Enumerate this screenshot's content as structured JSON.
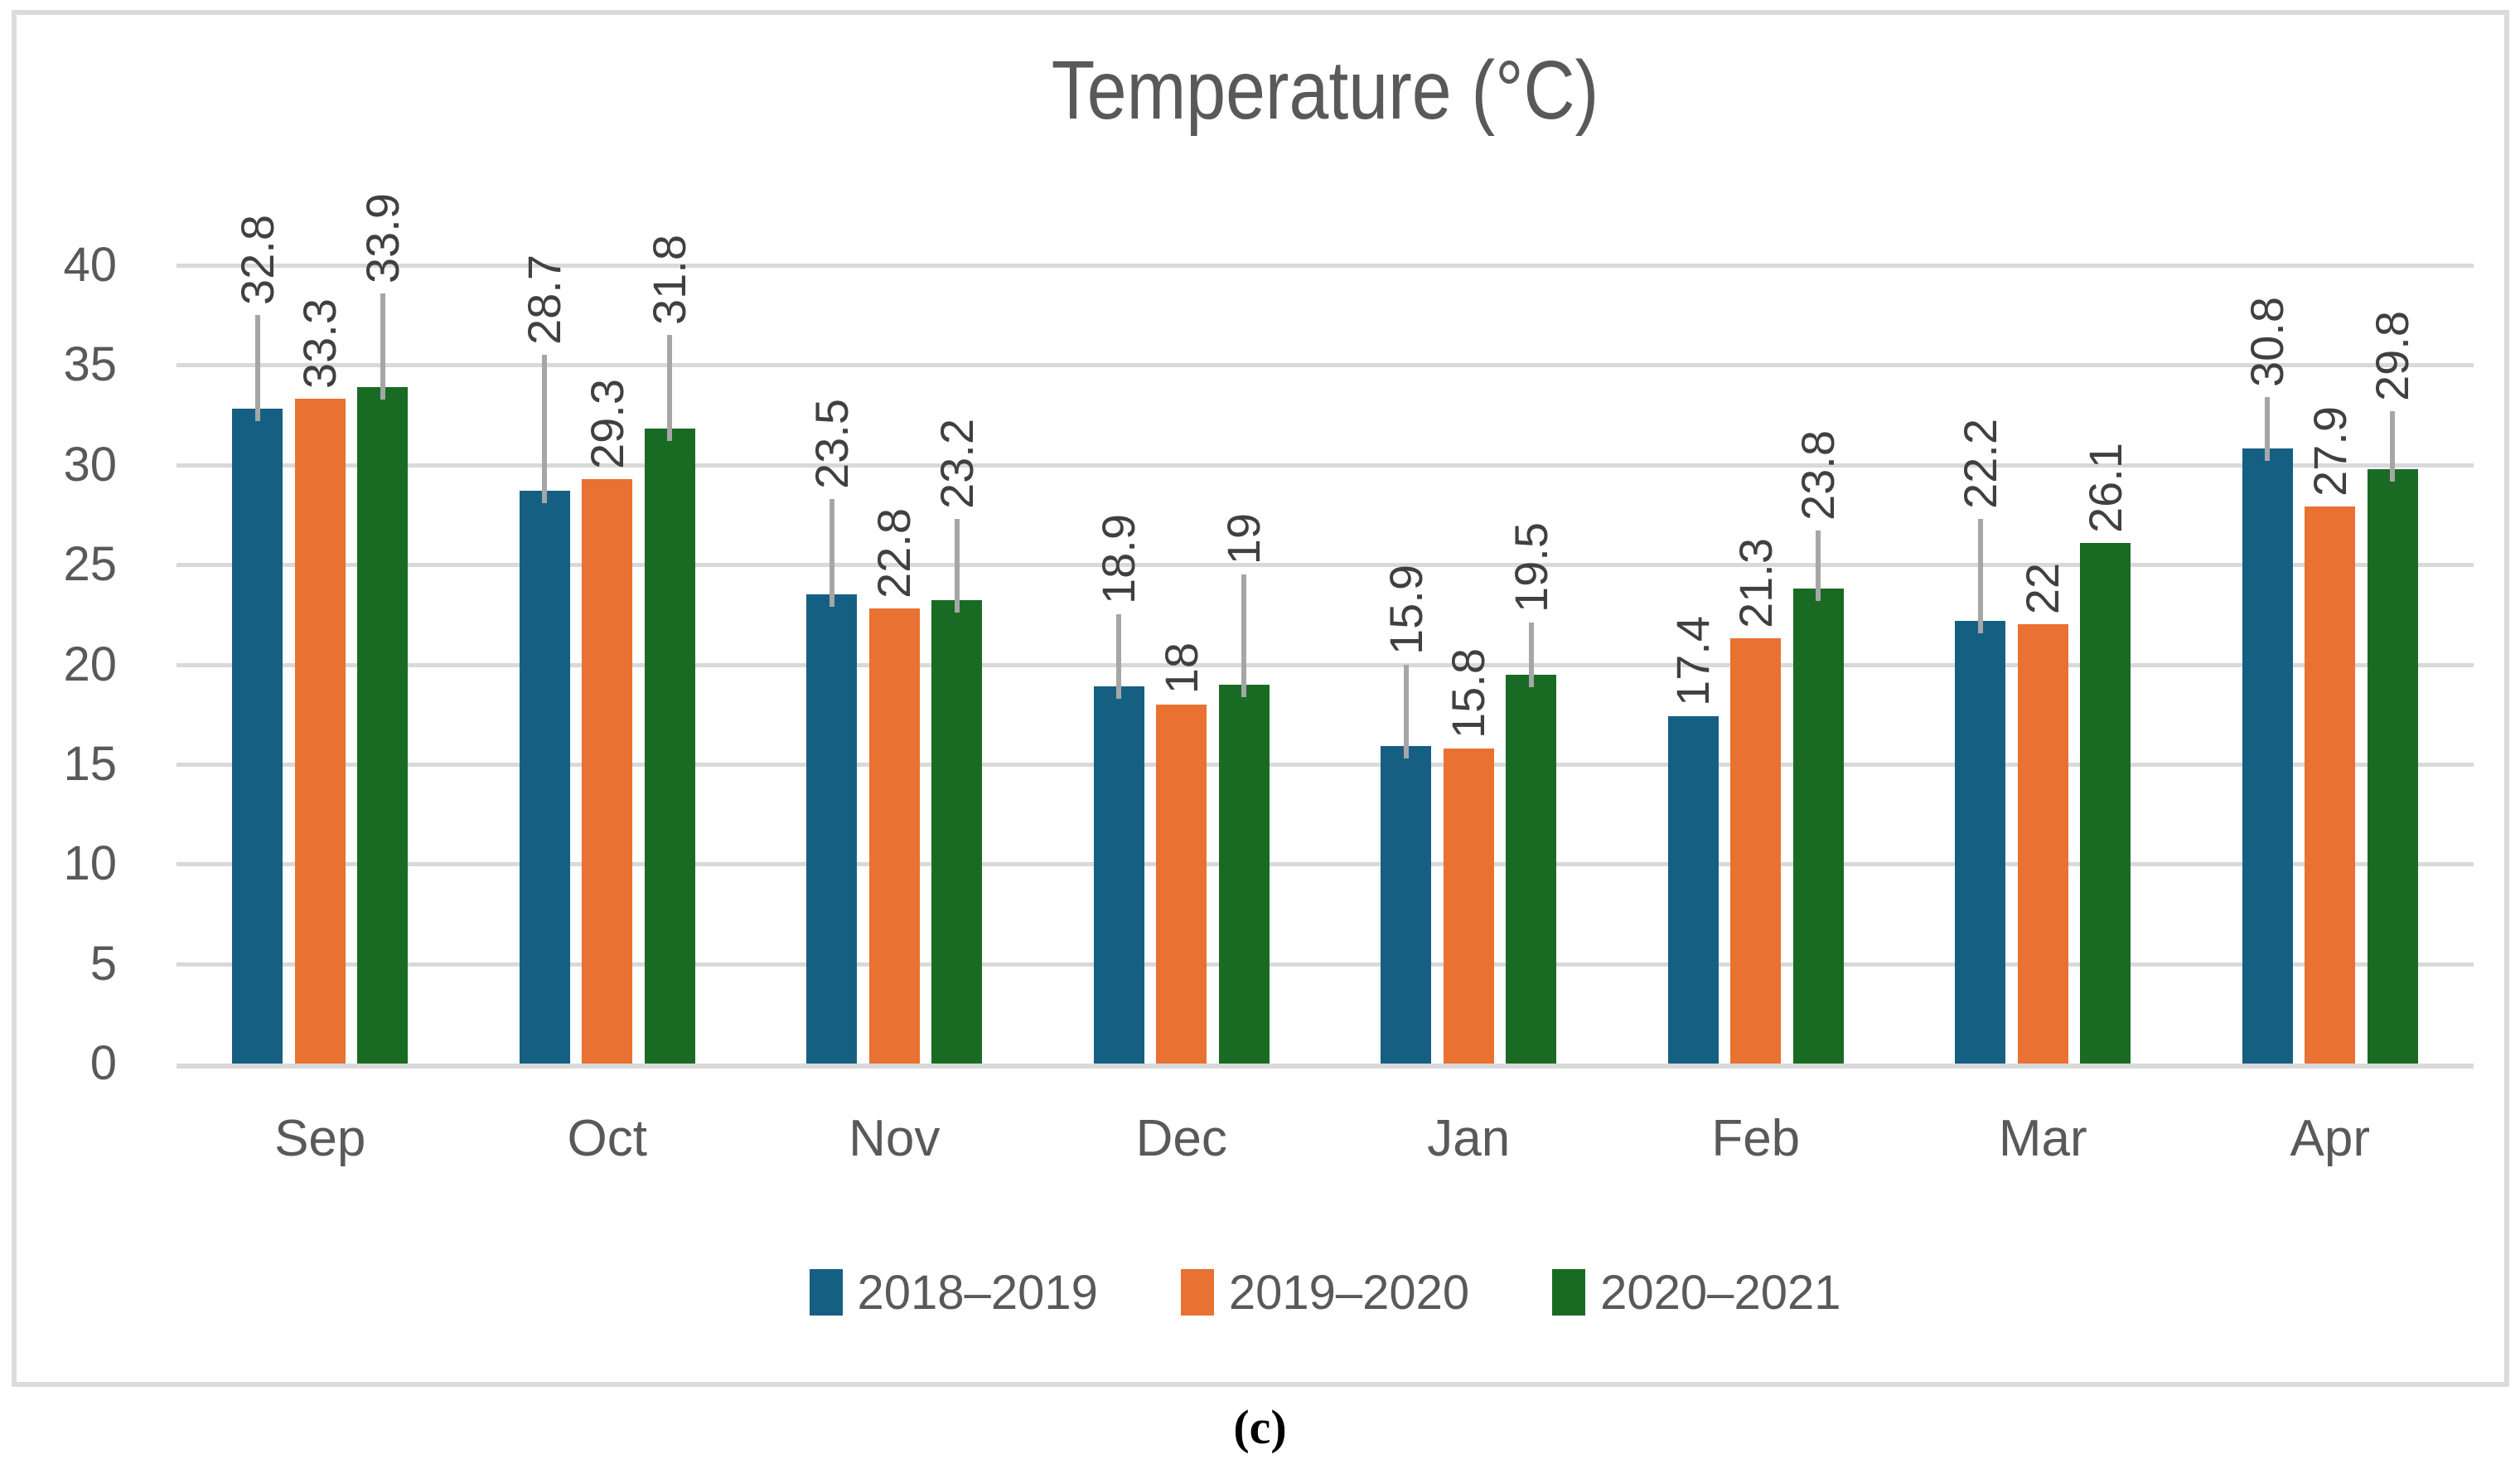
{
  "caption": "(c)",
  "colors": {
    "background": "#FFFFFF",
    "figure_border": "#DBDBDB",
    "gridline": "#D9D9D9",
    "error_bar": "#A6A6A6",
    "axis_text": "#595959",
    "title_text": "#595959",
    "data_label_text": "#404040",
    "series_blue": "#156082",
    "series_orange": "#E97132",
    "series_green": "#196B24"
  },
  "chart_data": {
    "type": "bar",
    "title": "Temperature (°C)",
    "xlabel": "",
    "ylabel": "",
    "categories": [
      "Sep",
      "Oct",
      "Nov",
      "Dec",
      "Jan",
      "Feb",
      "Mar",
      "Apr"
    ],
    "series": [
      {
        "name": "2018–2019",
        "color": "#156082",
        "values": [
          32.8,
          28.7,
          23.5,
          18.9,
          15.9,
          17.4,
          22.2,
          30.8
        ],
        "error_plus": [
          4.7,
          6.8,
          4.8,
          3.6,
          4.1,
          null,
          5.1,
          2.6
        ]
      },
      {
        "name": "2019–2020",
        "color": "#E97132",
        "values": [
          33.3,
          29.3,
          22.8,
          18,
          15.8,
          21.3,
          22,
          27.9
        ],
        "error_plus": [
          null,
          null,
          null,
          null,
          null,
          null,
          null,
          null
        ]
      },
      {
        "name": "2020–2021",
        "color": "#196B24",
        "values": [
          33.9,
          31.8,
          23.2,
          19,
          19.5,
          23.8,
          26.1,
          29.8
        ],
        "error_plus": [
          4.7,
          4.7,
          4.1,
          5.5,
          2.6,
          2.9,
          null,
          2.9
        ]
      }
    ],
    "ylim": [
      0,
      40
    ],
    "ytick_step": 5,
    "yticks": [
      0,
      5,
      10,
      15,
      20,
      25,
      30,
      35,
      40
    ],
    "grid": true,
    "legend_position": "bottom",
    "data_labels": true,
    "data_label_rotation": 90
  }
}
